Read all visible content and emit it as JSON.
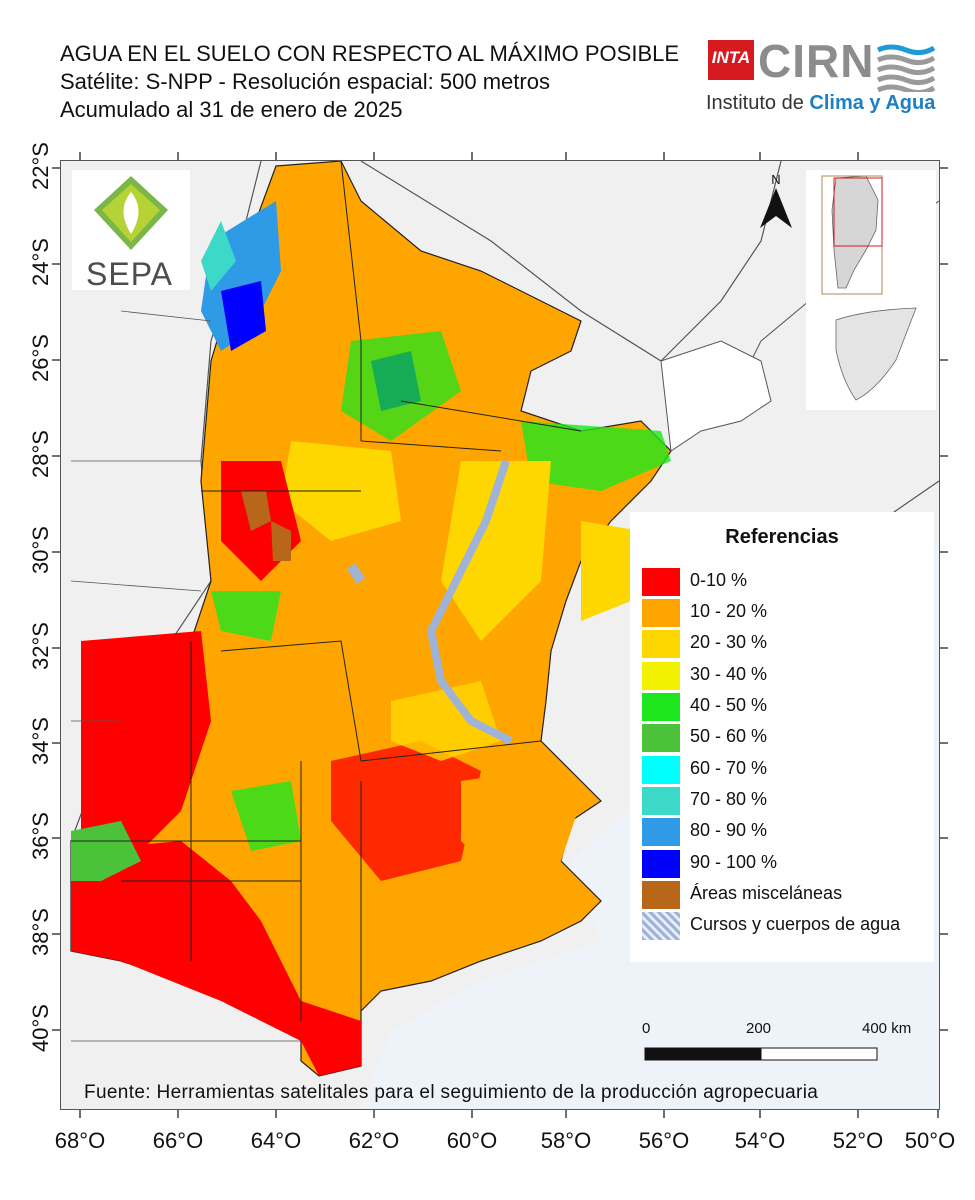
{
  "title": {
    "line1": "AGUA EN EL SUELO CON RESPECTO AL MÁXIMO POSIBLE",
    "line2": "Satélite: S-NPP - Resolución espacial: 500 metros",
    "line3": "Acumulado al 31 de enero de 2025"
  },
  "logos": {
    "inta": "INTA",
    "cirn": "CIRN",
    "instituto_prefix": "Instituto de ",
    "instituto_highlight": "Clima y Agua",
    "sepa": "SEPA"
  },
  "axes": {
    "latitudes": [
      "22°S",
      "24°S",
      "26°S",
      "28°S",
      "30°S",
      "32°S",
      "34°S",
      "36°S",
      "38°S",
      "40°S"
    ],
    "longitudes": [
      "68°O",
      "66°O",
      "64°O",
      "62°O",
      "60°O",
      "58°O",
      "56°O",
      "54°O",
      "52°O",
      "50°O"
    ]
  },
  "north_label": "N",
  "legend": {
    "title": "Referencias",
    "items": [
      {
        "label": "0-10 %",
        "color": "#ff0000"
      },
      {
        "label": "10 - 20 %",
        "color": "#ffa500"
      },
      {
        "label": "20 - 30 %",
        "color": "#ffd700"
      },
      {
        "label": "30 - 40 %",
        "color": "#f2f200"
      },
      {
        "label": "40 - 50 %",
        "color": "#1ee61e"
      },
      {
        "label": "50 - 60 %",
        "color": "#4cc23a"
      },
      {
        "label": "60 - 70 %",
        "color": "#00ffff"
      },
      {
        "label": "70 - 80 %",
        "color": "#3dd9c8"
      },
      {
        "label": "80 - 90 %",
        "color": "#2f9ae6"
      },
      {
        "label": "90 - 100 %",
        "color": "#0000ff"
      },
      {
        "label": "Áreas misceláneas",
        "color": "#b8661a"
      },
      {
        "label": "Cursos y cuerpos de agua",
        "color": "#9fb3d6"
      }
    ]
  },
  "scale_bar": {
    "labels": [
      "0",
      "200",
      "400 km"
    ]
  },
  "source": "Fuente: Herramientas satelitales para el seguimiento de la producción agropecuaria",
  "colors": {
    "background_land": "#f0f0f0",
    "ocean": "#eef3fa",
    "border": "#555555",
    "accent_blue": "#1e7fc4",
    "inta_red": "#d71920"
  }
}
